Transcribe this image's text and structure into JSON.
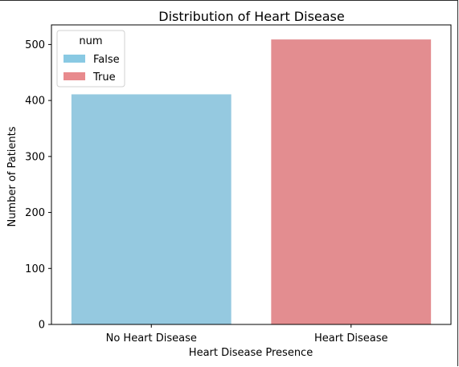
{
  "chart_data": {
    "type": "bar",
    "title": "Distribution of Heart Disease",
    "xlabel": "Heart Disease Presence",
    "ylabel": "Number of Patients",
    "categories": [
      "No Heart Disease",
      "Heart Disease"
    ],
    "values": [
      411,
      509
    ],
    "ylim": [
      0,
      535
    ],
    "yticks": [
      0,
      100,
      200,
      300,
      400,
      500
    ],
    "grid": false,
    "legend": {
      "title": "num",
      "position": "top-left",
      "entries": [
        {
          "label": "False",
          "color": "#89C9E3"
        },
        {
          "label": "True",
          "color": "#E88A8D"
        }
      ]
    },
    "bar_colors": [
      "#95C9E0",
      "#E38D90"
    ]
  }
}
